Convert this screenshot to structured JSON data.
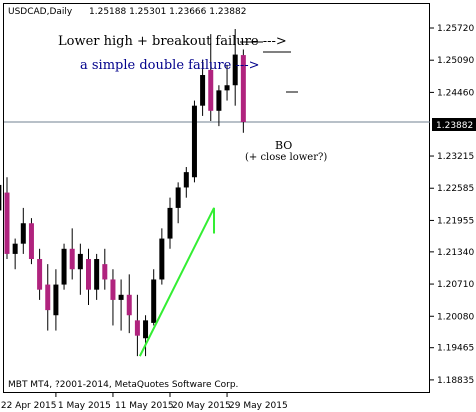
{
  "header": {
    "symbol": "USDCAD,Daily",
    "ohlc": "1.25188 1.25301 1.23666 1.23882"
  },
  "price_tag": "1.23882",
  "credit": "MBT MT4, ?2001-2014, MetaQuotes Software Corp.",
  "colors": {
    "bull": "#000000",
    "bear": "#b0237e",
    "trend": "#33ee33",
    "annotation_blue": "#00008b",
    "price_line": "#708090"
  },
  "chart_data": {
    "type": "candlestick",
    "ylim": [
      1.1875,
      1.2775
    ],
    "yticks": [
      "1.25720",
      "1.25090",
      "1.24460",
      "1.23215",
      "1.22585",
      "1.21955",
      "1.21340",
      "1.20710",
      "1.20080",
      "1.19465",
      "1.18835"
    ],
    "xticks": [
      "22 Apr 2015",
      "1 May 2015",
      "11 May 2015",
      "20 May 2015",
      "29 May 2015"
    ],
    "current_price": 1.23882,
    "candles": [
      {
        "x": 1,
        "o": 1.2215,
        "h": 1.229,
        "l": 1.213,
        "c": 1.2265
      },
      {
        "x": 2,
        "o": 1.225,
        "h": 1.228,
        "l": 1.212,
        "c": 1.213
      },
      {
        "x": 3,
        "o": 1.213,
        "h": 1.216,
        "l": 1.21,
        "c": 1.215
      },
      {
        "x": 4,
        "o": 1.215,
        "h": 1.222,
        "l": 1.213,
        "c": 1.219
      },
      {
        "x": 5,
        "o": 1.219,
        "h": 1.22,
        "l": 1.211,
        "c": 1.212
      },
      {
        "x": 6,
        "o": 1.212,
        "h": 1.214,
        "l": 1.204,
        "c": 1.206
      },
      {
        "x": 7,
        "o": 1.207,
        "h": 1.211,
        "l": 1.198,
        "c": 1.202
      },
      {
        "x": 8,
        "o": 1.201,
        "h": 1.21,
        "l": 1.198,
        "c": 1.207
      },
      {
        "x": 9,
        "o": 1.207,
        "h": 1.215,
        "l": 1.206,
        "c": 1.214
      },
      {
        "x": 10,
        "o": 1.214,
        "h": 1.218,
        "l": 1.208,
        "c": 1.21
      },
      {
        "x": 11,
        "o": 1.21,
        "h": 1.215,
        "l": 1.205,
        "c": 1.213
      },
      {
        "x": 12,
        "o": 1.212,
        "h": 1.214,
        "l": 1.203,
        "c": 1.206
      },
      {
        "x": 13,
        "o": 1.206,
        "h": 1.213,
        "l": 1.204,
        "c": 1.212
      },
      {
        "x": 14,
        "o": 1.211,
        "h": 1.214,
        "l": 1.206,
        "c": 1.208
      },
      {
        "x": 15,
        "o": 1.208,
        "h": 1.21,
        "l": 1.199,
        "c": 1.204
      },
      {
        "x": 16,
        "o": 1.204,
        "h": 1.208,
        "l": 1.198,
        "c": 1.205
      },
      {
        "x": 17,
        "o": 1.205,
        "h": 1.209,
        "l": 1.1975,
        "c": 1.201
      },
      {
        "x": 18,
        "o": 1.2,
        "h": 1.205,
        "l": 1.193,
        "c": 1.197
      },
      {
        "x": 19,
        "o": 1.1965,
        "h": 1.201,
        "l": 1.193,
        "c": 1.2
      },
      {
        "x": 20,
        "o": 1.1995,
        "h": 1.21,
        "l": 1.199,
        "c": 1.208
      },
      {
        "x": 21,
        "o": 1.208,
        "h": 1.218,
        "l": 1.207,
        "c": 1.216
      },
      {
        "x": 22,
        "o": 1.216,
        "h": 1.224,
        "l": 1.214,
        "c": 1.222
      },
      {
        "x": 23,
        "o": 1.222,
        "h": 1.227,
        "l": 1.219,
        "c": 1.226
      },
      {
        "x": 24,
        "o": 1.226,
        "h": 1.23,
        "l": 1.224,
        "c": 1.229
      },
      {
        "x": 25,
        "o": 1.228,
        "h": 1.243,
        "l": 1.227,
        "c": 1.242
      },
      {
        "x": 26,
        "o": 1.242,
        "h": 1.251,
        "l": 1.24,
        "c": 1.248
      },
      {
        "x": 27,
        "o": 1.249,
        "h": 1.256,
        "l": 1.239,
        "c": 1.241
      },
      {
        "x": 28,
        "o": 1.241,
        "h": 1.246,
        "l": 1.238,
        "c": 1.245
      },
      {
        "x": 29,
        "o": 1.245,
        "h": 1.25,
        "l": 1.243,
        "c": 1.246
      },
      {
        "x": 30,
        "o": 1.246,
        "h": 1.257,
        "l": 1.242,
        "c": 1.252
      },
      {
        "x": 31,
        "o": 1.2519,
        "h": 1.253,
        "l": 1.2367,
        "c": 1.2388
      }
    ],
    "trendline": {
      "from": {
        "x": 18.3,
        "y": 1.193
      },
      "to": {
        "x": 27.4,
        "y": 1.222
      },
      "tail": {
        "x": 27.4,
        "y": 1.217
      }
    },
    "annotations": [
      {
        "text": "Lower high + breakout failure --->",
        "color": "black"
      },
      {
        "text": "a simple double failure --->",
        "color": "blue"
      },
      {
        "text": "BO"
      },
      {
        "text": "(+ close lower?)"
      }
    ]
  }
}
